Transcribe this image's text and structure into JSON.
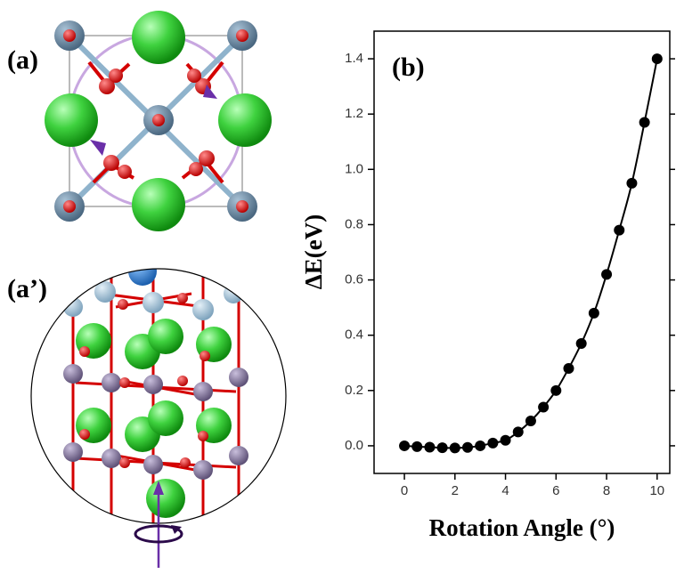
{
  "panels": [
    {
      "label": "(a)"
    },
    {
      "label": "(a’)"
    }
  ],
  "chart_data": {
    "type": "line",
    "annotations": [
      "(b)"
    ],
    "x_label": "Rotation Angle (°)",
    "y_label": "ΔE(eV)",
    "x": [
      0,
      0.5,
      1,
      1.5,
      2,
      2.5,
      3,
      3.5,
      4,
      4.5,
      5,
      5.5,
      6,
      6.5,
      7,
      7.5,
      8,
      8.5,
      9,
      9.5,
      10
    ],
    "values": [
      0.0,
      -0.003,
      -0.005,
      -0.007,
      -0.008,
      -0.006,
      0.0,
      0.01,
      0.02,
      0.05,
      0.09,
      0.14,
      0.2,
      0.28,
      0.37,
      0.48,
      0.62,
      0.78,
      0.95,
      1.17,
      1.4
    ],
    "color": "#000000",
    "xlim": [
      -1.2,
      10.5
    ],
    "ylim": [
      -0.1,
      1.5
    ],
    "xticks": [
      0,
      2,
      4,
      6,
      8,
      10
    ],
    "yticks": [
      {
        "value": 0,
        "label": "0.0"
      },
      0.2,
      0.4,
      0.6,
      0.8,
      {
        "value": 1,
        "label": "1.0"
      },
      1.2,
      1.4
    ]
  }
}
